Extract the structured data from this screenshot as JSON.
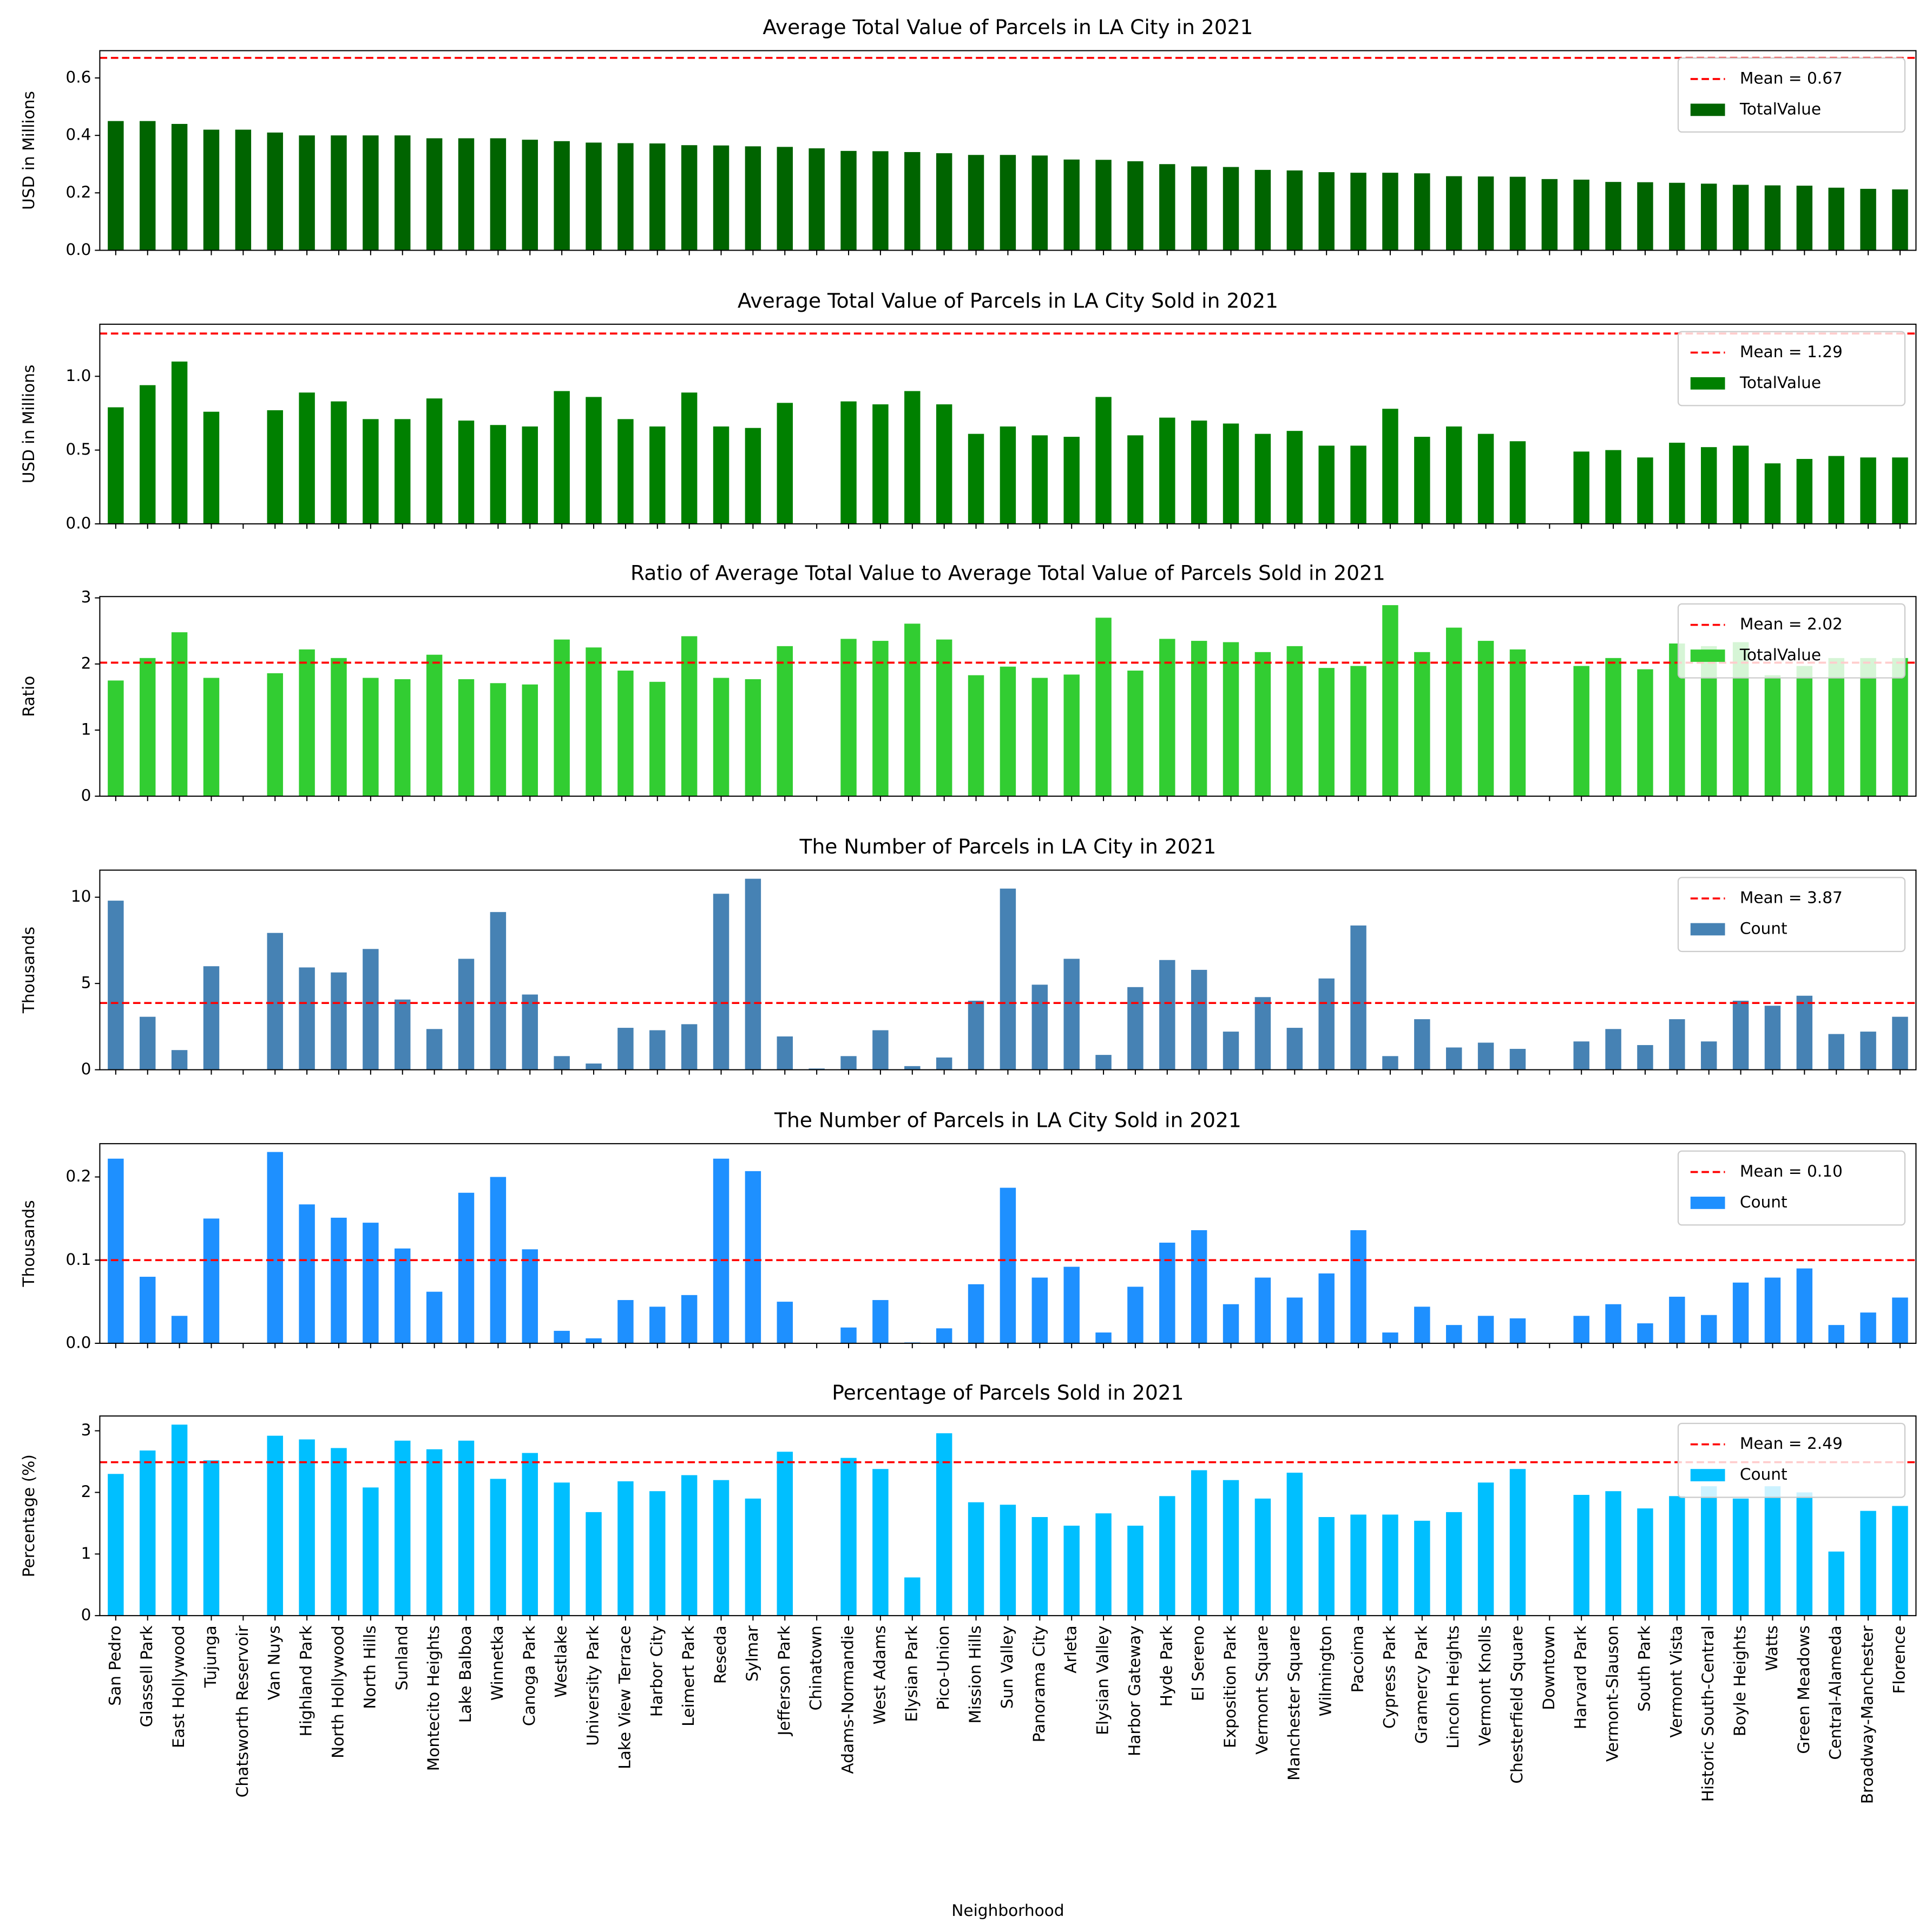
{
  "chart_data": [
    {
      "type": "bar",
      "title": "Average Total Value of Parcels in LA City in 2021",
      "ylabel": "USD in Millions",
      "ylim": [
        0,
        0.695
      ],
      "yticks": [
        {
          "value": 0,
          "label": "0.0"
        },
        0.2,
        0.4,
        0.6
      ],
      "mean_line": {
        "value": 0.67,
        "label": "Mean = 0.67",
        "color": "#ff0000"
      },
      "legend": "upper right",
      "series": [
        {
          "name": "TotalValue",
          "color": "#006400",
          "values": [
            0.45,
            0.45,
            0.44,
            0.42,
            0.42,
            0.41,
            0.4,
            0.4,
            0.4,
            0.4,
            0.39,
            0.39,
            0.39,
            0.385,
            0.38,
            0.375,
            0.373,
            0.372,
            0.366,
            0.365,
            0.362,
            0.36,
            0.355,
            0.346,
            0.345,
            0.342,
            0.338,
            0.332,
            0.332,
            0.33,
            0.316,
            0.315,
            0.31,
            0.3,
            0.292,
            0.29,
            0.28,
            0.278,
            0.272,
            0.27,
            0.27,
            0.268,
            0.258,
            0.257,
            0.256,
            0.248,
            0.246,
            0.238,
            0.237,
            0.235,
            0.232,
            0.228,
            0.226,
            0.225,
            0.218,
            0.214,
            0.212
          ]
        }
      ]
    },
    {
      "type": "bar",
      "title": "Average Total Value of Parcels in LA City Sold in 2021",
      "ylabel": "USD in Millions",
      "ylim": [
        0,
        1.353
      ],
      "yticks": [
        {
          "value": 0,
          "label": "0.0"
        },
        0.5,
        {
          "value": 1,
          "label": "1.0"
        }
      ],
      "mean_line": {
        "value": 1.29,
        "label": "Mean = 1.29",
        "color": "#ff0000"
      },
      "legend": "upper right",
      "series": [
        {
          "name": "TotalValue",
          "color": "#008000",
          "values": [
            0.79,
            0.94,
            1.1,
            0.76,
            null,
            0.77,
            0.89,
            0.83,
            0.71,
            0.71,
            0.85,
            0.7,
            0.67,
            0.66,
            0.9,
            0.86,
            0.71,
            0.66,
            0.89,
            0.66,
            0.65,
            0.82,
            null,
            0.83,
            0.81,
            0.9,
            0.81,
            0.61,
            0.66,
            0.6,
            0.59,
            0.86,
            0.6,
            0.72,
            0.7,
            0.68,
            0.61,
            0.63,
            0.53,
            0.53,
            0.78,
            0.59,
            0.66,
            0.61,
            0.56,
            null,
            0.49,
            0.5,
            0.45,
            0.55,
            0.52,
            0.53,
            0.41,
            0.44,
            0.46,
            0.45,
            0.45
          ]
        }
      ]
    },
    {
      "type": "bar",
      "title": "Ratio of Average Total Value to Average Total Value of Parcels Sold in 2021",
      "ylabel": "Ratio",
      "ylim": [
        0,
        3.02
      ],
      "yticks": [
        0,
        1,
        2,
        3
      ],
      "mean_line": {
        "value": 2.02,
        "label": "Mean = 2.02",
        "color": "#ff0000"
      },
      "legend": "upper right",
      "series": [
        {
          "name": "TotalValue",
          "color": "#32cd32",
          "values": [
            1.75,
            2.09,
            2.48,
            1.79,
            null,
            1.86,
            2.22,
            2.09,
            1.79,
            1.77,
            2.14,
            1.77,
            1.71,
            1.69,
            2.37,
            2.25,
            1.9,
            1.73,
            2.42,
            1.79,
            1.77,
            2.27,
            null,
            2.38,
            2.35,
            2.61,
            2.37,
            1.83,
            1.96,
            1.79,
            1.84,
            2.7,
            1.9,
            2.38,
            2.35,
            2.33,
            2.18,
            2.27,
            1.94,
            1.97,
            2.89,
            2.18,
            2.55,
            2.35,
            2.22,
            null,
            1.97,
            2.09,
            1.92,
            2.31,
            2.27,
            2.33,
            1.83,
            1.97,
            2.09,
            2.09,
            2.09
          ]
        }
      ]
    },
    {
      "type": "bar",
      "title": "The Number of Parcels in LA City in 2021",
      "ylabel": "Thousands",
      "ylim": [
        0,
        11.57
      ],
      "yticks": [
        0,
        5,
        10
      ],
      "mean_line": {
        "value": 3.87,
        "label": "Mean = 3.87",
        "color": "#ff0000"
      },
      "legend": "upper right",
      "series": [
        {
          "name": "Count",
          "color": "#4682b4",
          "values": [
            9.8,
            3.07,
            1.14,
            6.0,
            null,
            7.93,
            5.93,
            5.64,
            7.0,
            4.07,
            2.36,
            6.43,
            9.14,
            4.36,
            0.79,
            0.36,
            2.43,
            2.29,
            2.64,
            10.2,
            11.07,
            1.93,
            0.07,
            0.79,
            2.29,
            0.21,
            0.71,
            4.0,
            10.5,
            4.93,
            6.43,
            0.86,
            4.79,
            6.36,
            5.79,
            2.21,
            4.21,
            2.43,
            5.29,
            8.36,
            0.79,
            2.93,
            1.29,
            1.57,
            1.21,
            null,
            1.64,
            2.36,
            1.43,
            2.93,
            1.64,
            4.0,
            3.71,
            4.29,
            2.07,
            2.21,
            3.07
          ]
        }
      ]
    },
    {
      "type": "bar",
      "title": "The Number of Parcels in LA City Sold in 2021",
      "ylabel": "Thousands",
      "ylim": [
        0,
        0.24
      ],
      "yticks": [
        {
          "value": 0,
          "label": "0.0"
        },
        0.1,
        0.2
      ],
      "mean_line": {
        "value": 0.1,
        "label": "Mean = 0.10",
        "color": "#ff0000"
      },
      "legend": "upper right",
      "series": [
        {
          "name": "Count",
          "color": "#1e90ff",
          "values": [
            0.222,
            0.08,
            0.033,
            0.15,
            null,
            0.23,
            0.167,
            0.151,
            0.145,
            0.114,
            0.062,
            0.181,
            0.2,
            0.113,
            0.015,
            0.006,
            0.052,
            0.044,
            0.058,
            0.222,
            0.207,
            0.05,
            null,
            0.019,
            0.052,
            0.001,
            0.018,
            0.071,
            0.187,
            0.079,
            0.092,
            0.013,
            0.068,
            0.121,
            0.136,
            0.047,
            0.079,
            0.055,
            0.084,
            0.136,
            0.013,
            0.044,
            0.022,
            0.033,
            0.03,
            null,
            0.033,
            0.047,
            0.024,
            0.056,
            0.034,
            0.073,
            0.079,
            0.09,
            0.022,
            0.037,
            0.055
          ]
        }
      ]
    },
    {
      "type": "bar",
      "title": "Percentage of Parcels Sold in 2021",
      "ylabel": "Percentage (%)",
      "xlabel": "Neighborhood",
      "ylim": [
        0,
        3.24
      ],
      "yticks": [
        0,
        1,
        2,
        3
      ],
      "mean_line": {
        "value": 2.49,
        "label": "Mean = 2.49",
        "color": "#ff0000"
      },
      "legend": "upper right",
      "categories": [
        "San Pedro",
        "Glassell Park",
        "East Hollywood",
        "Tujunga",
        "Chatsworth Reservoir",
        "Van Nuys",
        "Highland Park",
        "North Hollywood",
        "North Hills",
        "Sunland",
        "Montecito Heights",
        "Lake Balboa",
        "Winnetka",
        "Canoga Park",
        "Westlake",
        "University Park",
        "Lake View Terrace",
        "Harbor City",
        "Leimert Park",
        "Reseda",
        "Sylmar",
        "Jefferson Park",
        "Chinatown",
        "Adams-Normandie",
        "West Adams",
        "Elysian Park",
        "Pico-Union",
        "Mission Hills",
        "Sun Valley",
        "Panorama City",
        "Arleta",
        "Elysian Valley",
        "Harbor Gateway",
        "Hyde Park",
        "El Sereno",
        "Exposition Park",
        "Vermont Square",
        "Manchester Square",
        "Wilmington",
        "Pacoima",
        "Cypress Park",
        "Gramercy Park",
        "Lincoln Heights",
        "Vermont Knolls",
        "Chesterfield Square",
        "Downtown",
        "Harvard Park",
        "Vermont-Slauson",
        "South Park",
        "Vermont Vista",
        "Historic South-Central",
        "Boyle Heights",
        "Watts",
        "Green Meadows",
        "Central-Alameda",
        "Broadway-Manchester",
        "Florence"
      ],
      "series": [
        {
          "name": "Count",
          "color": "#00bfff",
          "values": [
            2.3,
            2.68,
            3.1,
            2.52,
            null,
            2.92,
            2.86,
            2.72,
            2.08,
            2.84,
            2.7,
            2.84,
            2.22,
            2.64,
            2.16,
            1.68,
            2.18,
            2.02,
            2.28,
            2.2,
            1.9,
            2.66,
            null,
            2.56,
            2.38,
            0.62,
            2.96,
            1.84,
            1.8,
            1.6,
            1.46,
            1.66,
            1.46,
            1.94,
            2.36,
            2.2,
            1.9,
            2.32,
            1.6,
            1.64,
            1.64,
            1.54,
            1.68,
            2.16,
            2.38,
            null,
            1.96,
            2.02,
            1.74,
            1.94,
            2.1,
            1.9,
            2.1,
            2.0,
            1.04,
            1.7,
            1.78
          ]
        }
      ]
    }
  ]
}
